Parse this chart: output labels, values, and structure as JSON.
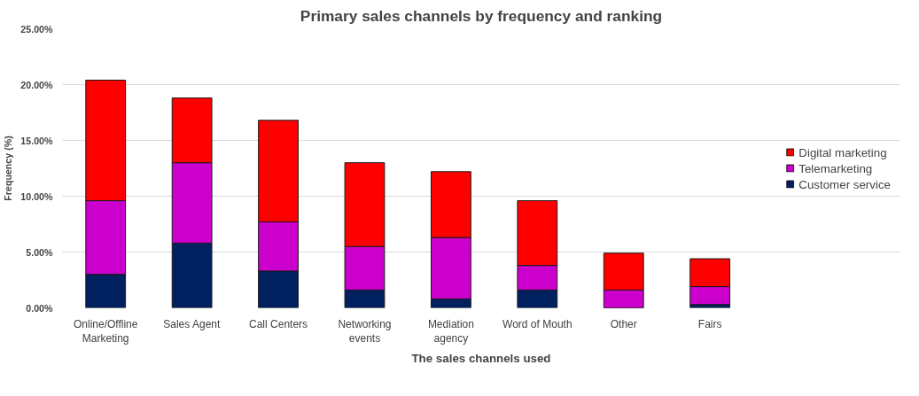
{
  "chart_data": {
    "type": "bar",
    "title": "Primary sales channels by frequency and ranking",
    "xlabel": "The sales channels used",
    "ylabel": "Frequency (%)",
    "categories": [
      "Online/Offline Marketing",
      "Sales Agent",
      "Call Centers",
      "Networking events",
      "Mediation agency",
      "Word of Mouth",
      "Other",
      "Fairs"
    ],
    "stacked": true,
    "series": [
      {
        "name": "Customer service",
        "color": "#002060",
        "values": [
          3.0,
          5.8,
          3.3,
          1.6,
          0.8,
          1.6,
          0,
          0.3
        ]
      },
      {
        "name": "Telemarketing",
        "color": "#cc00cc",
        "values": [
          6.6,
          7.2,
          4.4,
          3.9,
          5.5,
          2.2,
          1.6,
          1.6
        ]
      },
      {
        "name": "Digital marketing",
        "color": "#ff0000",
        "values": [
          10.8,
          5.8,
          9.1,
          7.5,
          5.9,
          5.8,
          3.3,
          2.5
        ]
      }
    ],
    "ylim": [
      0,
      25
    ],
    "yticks": [
      {
        "value": 0,
        "label": "0.00%"
      },
      {
        "value": 5,
        "label": "5.00%"
      },
      {
        "value": 10,
        "label": "10.00%"
      },
      {
        "value": 15,
        "label": "15.00%"
      },
      {
        "value": 20,
        "label": "20.00%"
      },
      {
        "value": 25,
        "label": "25.00%"
      }
    ],
    "grid": "y",
    "legend": "right"
  }
}
